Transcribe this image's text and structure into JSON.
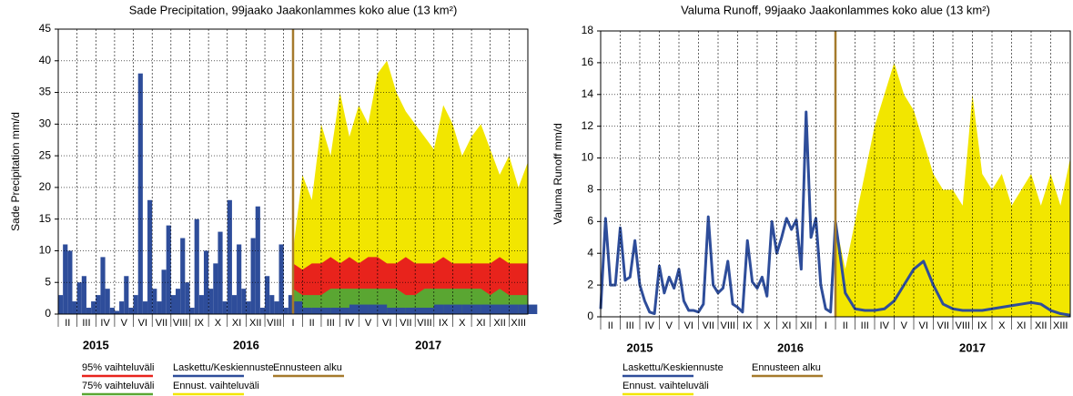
{
  "chart_data": [
    {
      "type": "bar",
      "title": "Sade Precipitation, 99jaako Jaakonlammes koko alue (13 km²)",
      "y_label": "Sade Precipitation mm/d",
      "ylim": [
        0,
        45
      ],
      "yticks": [
        0,
        5,
        10,
        15,
        20,
        25,
        30,
        35,
        40,
        45
      ],
      "xlim": [
        0,
        25
      ],
      "categories": [
        "II",
        "III",
        "IV",
        "V",
        "VI",
        "VII",
        "VIII",
        "IX",
        "X",
        "XI",
        "XII",
        "VIII",
        "I",
        "II",
        "III",
        "IV",
        "V",
        "VI",
        "VII",
        "VIII",
        "IX",
        "X",
        "XI",
        "XII",
        "XIII"
      ],
      "years": [
        "2015",
        "2016",
        "2017"
      ],
      "grid": true,
      "forecast_start": {
        "name": "Ennusteen alku",
        "value": 12.5,
        "color": "#a57a2c"
      },
      "series": [
        {
          "name": "Ennust. vaihteluväli",
          "color": "#f2e600",
          "style": "area",
          "x": [
            12.5,
            13,
            13.5,
            14,
            14.5,
            15,
            15.5,
            16,
            16.5,
            17,
            17.5,
            18,
            18.5,
            19,
            19.5,
            20,
            20.5,
            21,
            21.5,
            22,
            22.5,
            23,
            23.5,
            24,
            24.5,
            25
          ],
          "values": [
            10,
            22,
            18,
            30,
            25,
            35,
            28,
            33,
            30,
            38,
            40,
            35,
            32,
            30,
            28,
            26,
            33,
            30,
            25,
            28,
            30,
            26,
            22,
            25,
            20,
            24
          ]
        },
        {
          "name": "95% vaihteluväli",
          "color": "#e8231c",
          "style": "area",
          "x": [
            12.5,
            13,
            13.5,
            14,
            14.5,
            15,
            15.5,
            16,
            16.5,
            17,
            17.5,
            18,
            18.5,
            19,
            19.5,
            20,
            20.5,
            21,
            21.5,
            22,
            22.5,
            23,
            23.5,
            24,
            24.5,
            25
          ],
          "values": [
            8,
            7,
            8,
            8,
            9,
            8,
            9,
            8,
            9,
            9,
            8,
            8,
            9,
            8,
            8,
            8,
            9,
            8,
            8,
            8,
            8,
            8,
            9,
            8,
            8,
            8
          ]
        },
        {
          "name": "75% vaihteluväli",
          "color": "#5aa632",
          "style": "area",
          "x": [
            12.5,
            13,
            13.5,
            14,
            14.5,
            15,
            15.5,
            16,
            16.5,
            17,
            17.5,
            18,
            18.5,
            19,
            19.5,
            20,
            20.5,
            21,
            21.5,
            22,
            22.5,
            23,
            23.5,
            24,
            24.5,
            25
          ],
          "values": [
            4,
            3,
            3,
            3,
            4,
            4,
            4,
            4,
            4,
            4,
            4,
            4,
            3,
            3,
            4,
            4,
            4,
            4,
            4,
            4,
            4,
            3,
            4,
            3,
            3,
            3
          ]
        },
        {
          "name": "Laskettu/Keskiennuste",
          "color": "#2e4d9a",
          "style": "bar",
          "x": [
            0,
            0.25,
            0.5,
            0.75,
            1,
            1.25,
            1.5,
            1.75,
            2,
            2.25,
            2.5,
            2.75,
            3,
            3.25,
            3.5,
            3.75,
            4,
            4.25,
            4.5,
            4.75,
            5,
            5.25,
            5.5,
            5.75,
            6,
            6.25,
            6.5,
            6.75,
            7,
            7.25,
            7.5,
            7.75,
            8,
            8.25,
            8.5,
            8.75,
            9,
            9.25,
            9.5,
            9.75,
            10,
            10.25,
            10.5,
            10.75,
            11,
            11.25,
            11.5,
            11.75,
            12,
            12.25,
            12.5,
            13,
            13.5,
            14,
            14.5,
            15,
            15.5,
            16,
            16.5,
            17,
            17.5,
            18,
            18.5,
            19,
            19.5,
            20,
            20.5,
            21,
            21.5,
            22,
            22.5,
            23,
            23.5,
            24,
            24.5,
            25
          ],
          "values": [
            3,
            11,
            10,
            2,
            5,
            6,
            1,
            2,
            3,
            9,
            4,
            1,
            0.5,
            2,
            6,
            1,
            3,
            38,
            2,
            18,
            4,
            2,
            7,
            14,
            3,
            4,
            12,
            5,
            1,
            15,
            3,
            10,
            4,
            8,
            13,
            2,
            18,
            3,
            11,
            4,
            2,
            12,
            17,
            1,
            6,
            3,
            2,
            11,
            1,
            3,
            2,
            1,
            1,
            1,
            1,
            1,
            1.5,
            1.5,
            1.5,
            1.5,
            1,
            1,
            1,
            1,
            1,
            1.5,
            1.5,
            1.5,
            1.5,
            1.5,
            1.5,
            1.5,
            1.5,
            1.5,
            1.5,
            1.5
          ]
        }
      ]
    },
    {
      "type": "line",
      "title": "Valuma Runoff, 99jaako Jaakonlammes koko alue (13 km²)",
      "y_label": "Valuma Runoff mm/d",
      "ylim": [
        0,
        18
      ],
      "yticks": [
        0,
        2,
        4,
        6,
        8,
        10,
        12,
        14,
        16,
        18
      ],
      "xlim": [
        0,
        24
      ],
      "categories": [
        "II",
        "III",
        "IV",
        "V",
        "VI",
        "VII",
        "VIII",
        "IX",
        "X",
        "XI",
        "XII",
        "I",
        "II",
        "III",
        "IV",
        "V",
        "VI",
        "VII",
        "VIII",
        "IX",
        "X",
        "XI",
        "XII",
        "XIII"
      ],
      "years": [
        "2015",
        "2016",
        "2017"
      ],
      "grid": true,
      "forecast_start": {
        "name": "Ennusteen alku",
        "value": 12,
        "color": "#a57a2c"
      },
      "series": [
        {
          "name": "Ennust. vaihteluväli",
          "color": "#f2e600",
          "style": "area",
          "x": [
            12,
            12.5,
            13,
            13.5,
            14,
            14.5,
            15,
            15.5,
            16,
            16.5,
            17,
            17.5,
            18,
            18.5,
            19,
            19.5,
            20,
            20.5,
            21,
            21.5,
            22,
            22.5,
            23,
            23.5,
            24
          ],
          "values": [
            6,
            3,
            6,
            9,
            12,
            14,
            16,
            14,
            13,
            11,
            9,
            8,
            8,
            7,
            14,
            9,
            8,
            9,
            7,
            8,
            9,
            7,
            9,
            7,
            10
          ]
        },
        {
          "name": "Laskettu/Keskiennuste",
          "color": "#2e4d9a",
          "style": "line",
          "x": [
            0,
            0.25,
            0.5,
            0.75,
            1,
            1.25,
            1.5,
            1.75,
            2,
            2.25,
            2.5,
            2.75,
            3,
            3.25,
            3.5,
            3.75,
            4,
            4.25,
            4.5,
            4.75,
            5,
            5.25,
            5.5,
            5.75,
            6,
            6.25,
            6.5,
            6.75,
            7,
            7.25,
            7.5,
            7.75,
            8,
            8.25,
            8.5,
            8.75,
            9,
            9.25,
            9.5,
            9.75,
            10,
            10.25,
            10.5,
            10.75,
            11,
            11.25,
            11.5,
            11.75,
            12,
            12.5,
            13,
            13.5,
            14,
            14.5,
            15,
            15.5,
            16,
            16.5,
            17,
            17.5,
            18,
            18.5,
            19,
            19.5,
            20,
            20.5,
            21,
            21.5,
            22,
            22.5,
            23,
            23.5,
            24
          ],
          "values": [
            0.5,
            6.2,
            2,
            2,
            5.6,
            2.3,
            2.5,
            4.8,
            2,
            1,
            0.3,
            0.2,
            3.2,
            1.5,
            2.5,
            1.8,
            3,
            1,
            0.4,
            0.4,
            0.3,
            0.8,
            6.3,
            2,
            1.5,
            1.8,
            3.5,
            0.8,
            0.6,
            0.3,
            4.8,
            2.2,
            1.8,
            2.5,
            1.3,
            6,
            4,
            5,
            6.2,
            5.5,
            6.1,
            3,
            12.9,
            5,
            6.2,
            2,
            0.5,
            0.3,
            6,
            1.5,
            0.5,
            0.4,
            0.4,
            0.5,
            1,
            2,
            3,
            3.5,
            2,
            0.8,
            0.5,
            0.4,
            0.4,
            0.4,
            0.5,
            0.6,
            0.7,
            0.8,
            0.9,
            0.8,
            0.4,
            0.2,
            0.1
          ]
        }
      ]
    }
  ]
}
